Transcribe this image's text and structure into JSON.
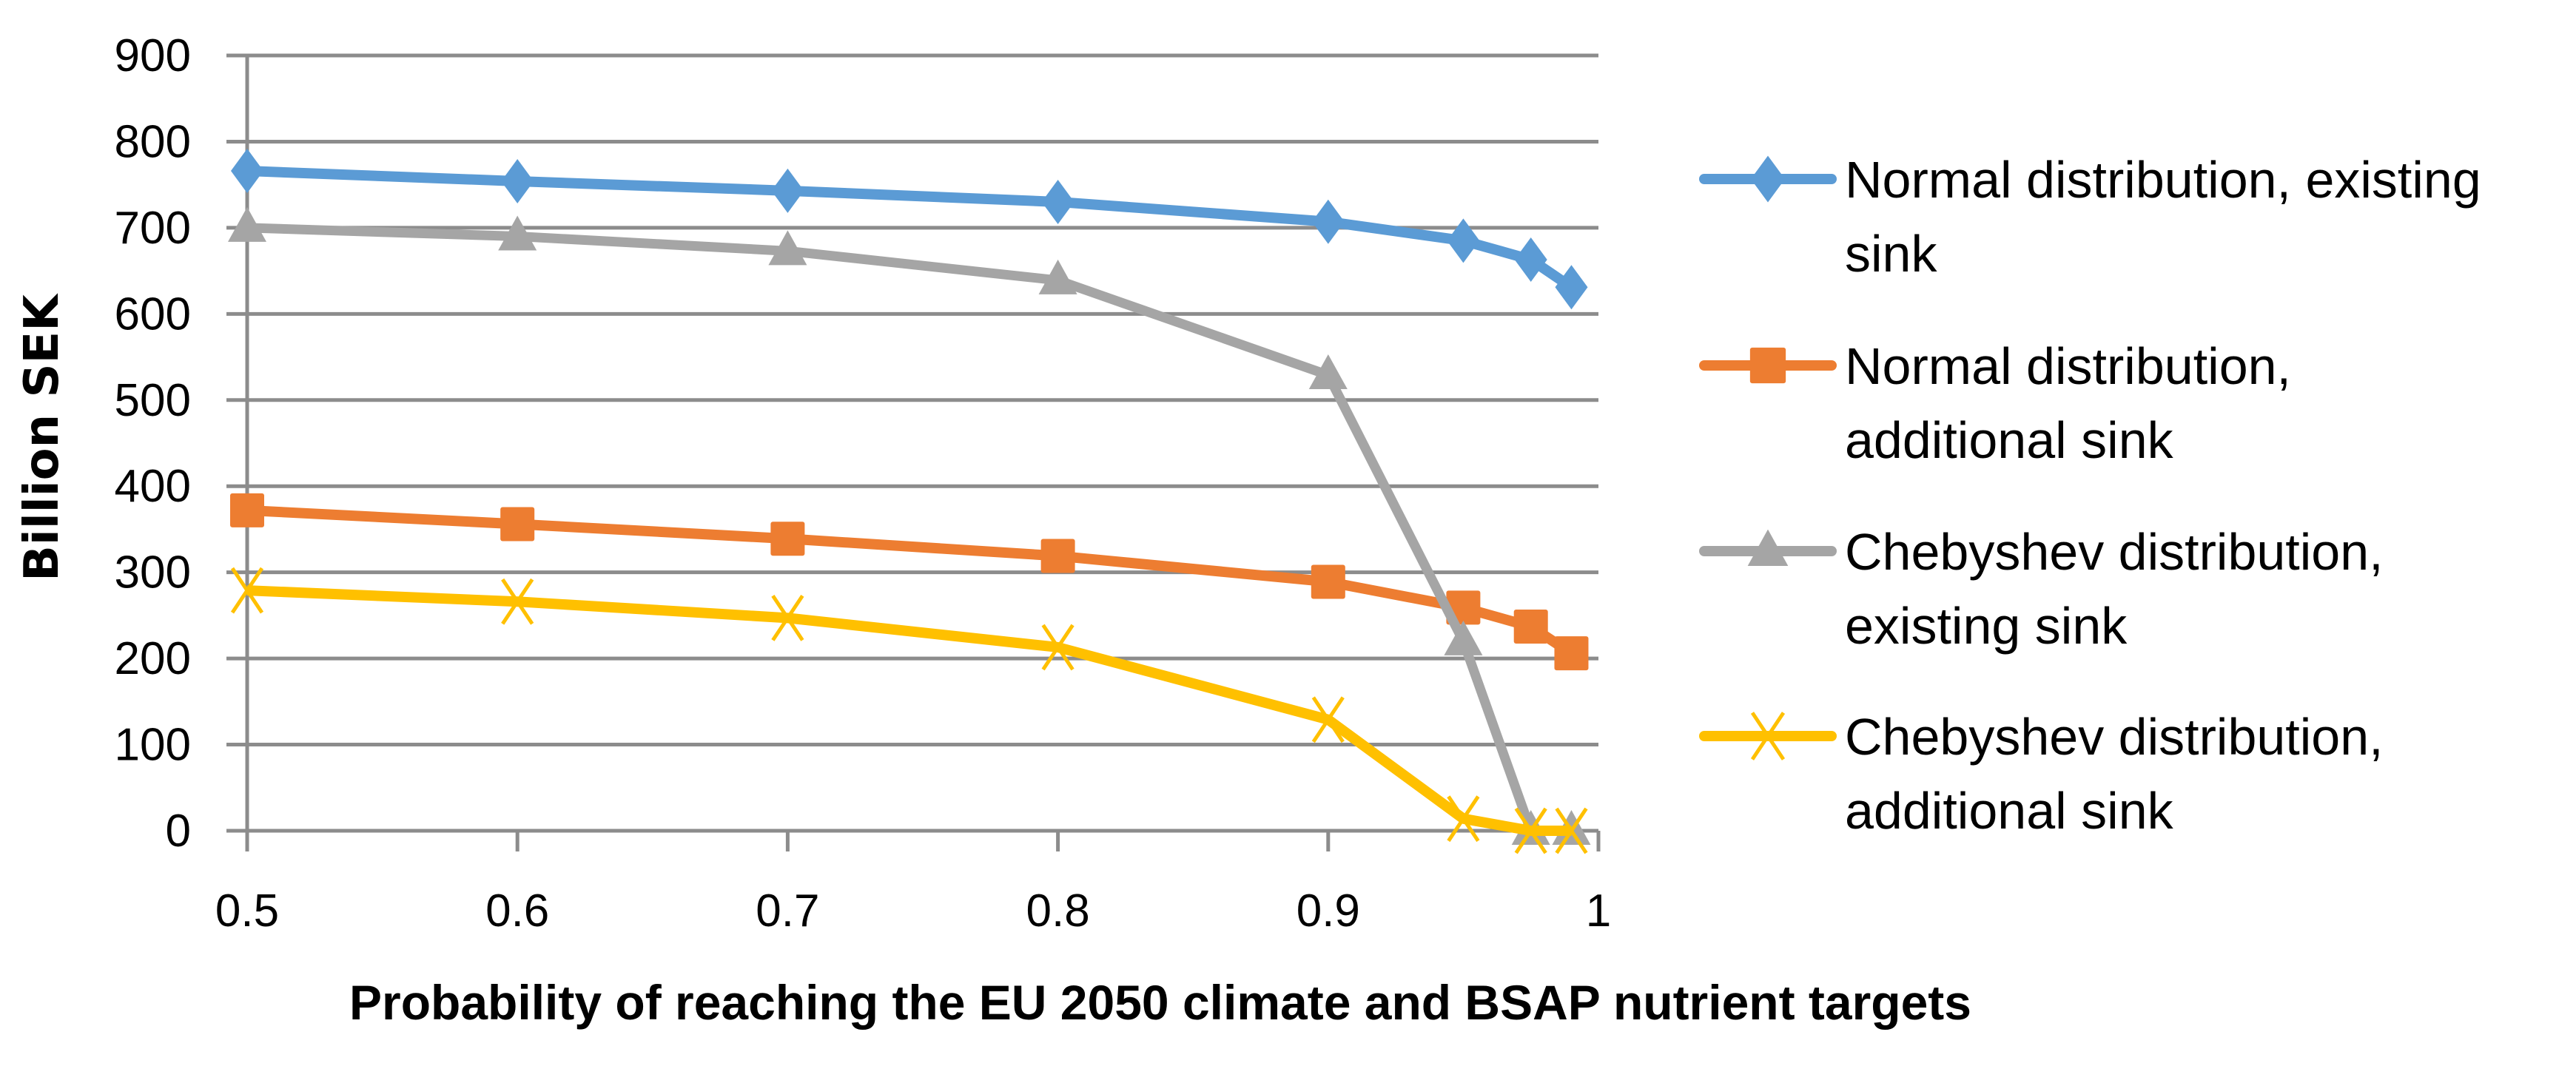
{
  "chart_data": {
    "type": "line",
    "title": "",
    "xlabel": "Probability of reaching the EU 2050 climate and BSAP nutrient targets",
    "ylabel": "Billion SEK",
    "xlim": [
      0.5,
      1.0
    ],
    "ylim": [
      0,
      900
    ],
    "x_ticks": [
      0.5,
      0.6,
      0.7,
      0.8,
      0.9,
      1
    ],
    "x_tick_labels": [
      "0.5",
      "0.6",
      "0.7",
      "0.8",
      "0.9",
      "1"
    ],
    "y_ticks": [
      0,
      100,
      200,
      300,
      400,
      500,
      600,
      700,
      800,
      900
    ],
    "y_tick_labels": [
      "0",
      "100",
      "200",
      "300",
      "400",
      "500",
      "600",
      "700",
      "800",
      "900"
    ],
    "grid": "horizontal",
    "legend_position": "right",
    "x": [
      0.5,
      0.6,
      0.7,
      0.8,
      0.9,
      0.95,
      0.975,
      0.99
    ],
    "series": [
      {
        "name": "Normal distribution, existing sink",
        "legend_lines": [
          "Normal distribution, existing",
          "sink"
        ],
        "color": "#5B9BD5",
        "marker": "diamond",
        "values": [
          766,
          754,
          743,
          730,
          707,
          685,
          663,
          631
        ]
      },
      {
        "name": "Normal distribution, additional sink",
        "legend_lines": [
          "Normal distribution,",
          "additional sink"
        ],
        "color": "#ED7D31",
        "marker": "square",
        "values": [
          372,
          356,
          339,
          319,
          289,
          259,
          237,
          206
        ]
      },
      {
        "name": "Chebyshev distribution, existing sink",
        "legend_lines": [
          "Chebyshev distribution,",
          "existing sink"
        ],
        "color": "#A5A5A5",
        "marker": "triangle",
        "values": [
          700,
          690,
          673,
          639,
          529,
          220,
          0,
          0
        ]
      },
      {
        "name": "Chebyshev distribution, additional sink",
        "legend_lines": [
          "Chebyshev distribution,",
          "additional sink"
        ],
        "color": "#FFC000",
        "marker": "x",
        "values": [
          279,
          266,
          247,
          213,
          129,
          14,
          0,
          0
        ]
      }
    ]
  },
  "colors": {
    "gridline": "#8C8C8C",
    "text": "#000000"
  }
}
